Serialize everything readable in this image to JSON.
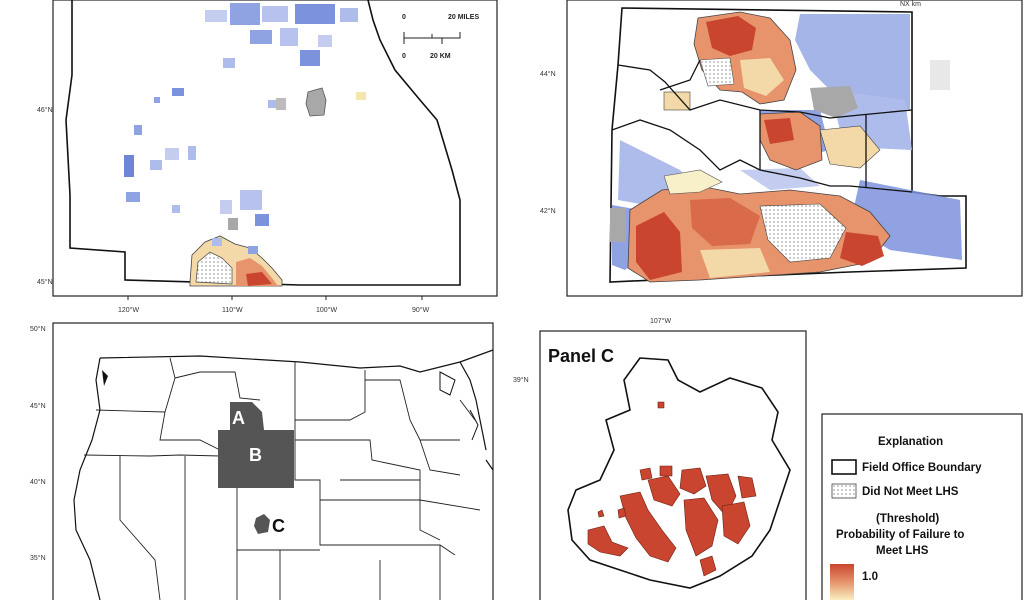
{
  "panel_a": {
    "lat_labels": [
      "46°N",
      "45°N"
    ],
    "lon_labels": [
      "120°W",
      "110°W",
      "100°W",
      "90°W"
    ],
    "scale": {
      "miles_zero": "0",
      "miles_label": "20 MILES",
      "km_zero": "0",
      "km_label": "20 KM"
    }
  },
  "panel_b": {
    "lat_labels": [
      "44°N",
      "42°N"
    ],
    "top_right_label": "NX km"
  },
  "overview": {
    "lat_labels": [
      "50°N",
      "45°N",
      "40°N",
      "35°N"
    ],
    "region_labels": [
      "A",
      "B",
      "C"
    ]
  },
  "panel_c": {
    "title": "Panel C",
    "lon_label": "107°W",
    "lat_label": "39°N"
  },
  "legend": {
    "title": "Explanation",
    "items": [
      "Field Office Boundary",
      "Did Not Meet LHS",
      "(Threshold)",
      "Probability of Failure to",
      "Meet LHS"
    ],
    "scale_max": "1.0"
  },
  "colors": {
    "prob_high": "#c9452f",
    "prob_mid": "#e7936b",
    "prob_low": "#f3d8a8",
    "prob_lowest": "#f8f0c8",
    "met_blue": "#6f86d6",
    "met_light": "#aebcec",
    "grey": "#a8a8a8",
    "region_fill": "#555555"
  }
}
